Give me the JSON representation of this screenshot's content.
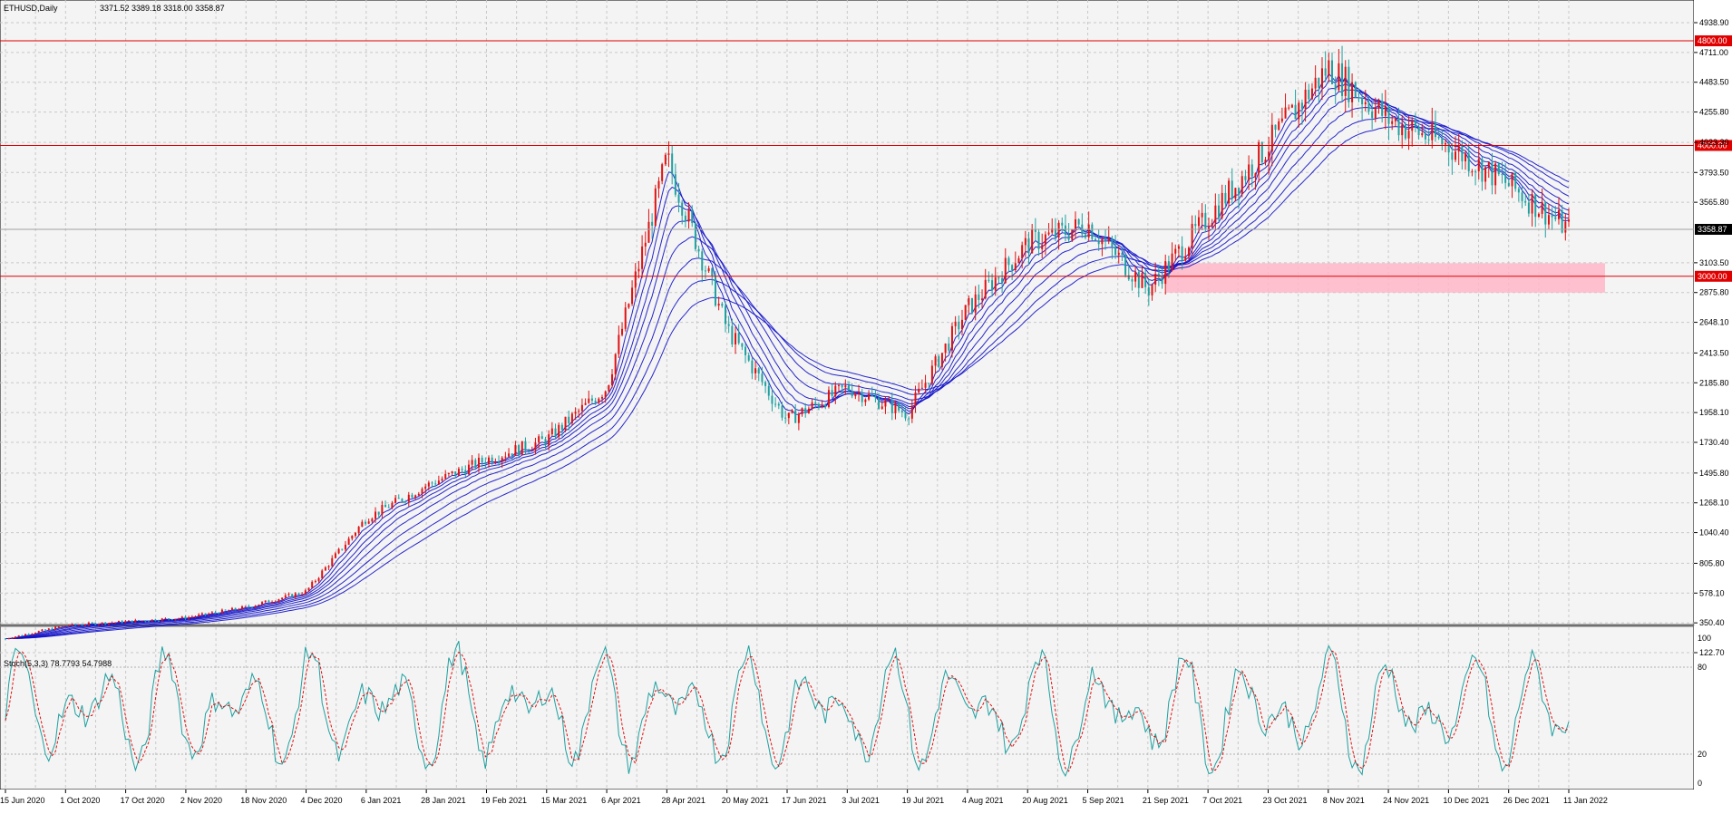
{
  "header": {
    "symbol_tf": "ETHUSD,Daily",
    "ohlc": "3371.52 3389.18 3318.00 3358.87"
  },
  "colors": {
    "background": "#f4f4f4",
    "grid": "#c8c8c8",
    "bull_candle": "#e01010",
    "bear_candle": "#20a0a0",
    "ma_ribbon": "#1010c8",
    "level_line": "#e00000",
    "support_zone": "#ffb6c8",
    "stoch_main": "#20a0a0",
    "stoch_signal": "#e01010"
  },
  "chart_data": [
    {
      "type": "candlestick",
      "series": [
        {
          "name": "ETHUSD",
          "kind": "ohlc-close-trend",
          "x": [
            "15 Jun 2020",
            "1 Oct 2020",
            "17 Oct 2020",
            "2 Nov 2020",
            "18 Nov 2020",
            "4 Dec 2020",
            "6 Jan 2021",
            "28 Jan 2021",
            "19 Feb 2021",
            "15 Mar 2021",
            "6 Apr 2021",
            "28 Apr 2021",
            "20 May 2021",
            "17 Jun 2021",
            "3 Jul 2021",
            "19 Jul 2021",
            "4 Aug 2021",
            "20 Aug 2021",
            "5 Sep 2021",
            "21 Sep 2021",
            "7 Oct 2021",
            "23 Oct 2021",
            "8 Nov 2021",
            "24 Nov 2021",
            "10 Dec 2021",
            "26 Dec 2021",
            "11 Jan 2022"
          ],
          "values": [
            230,
            330,
            360,
            390,
            470,
            590,
            1150,
            1400,
            1600,
            1750,
            2150,
            3900,
            2600,
            1900,
            2150,
            1950,
            2750,
            3250,
            3400,
            2900,
            3450,
            4000,
            4600,
            4200,
            4000,
            3700,
            3358.87
          ]
        }
      ],
      "y_ticks": [
        "4938.90",
        "4711.00",
        "4483.50",
        "4255.80",
        "4023.30",
        "3793.50",
        "3565.80",
        "3103.50",
        "2875.80",
        "2648.10",
        "2413.50",
        "2185.80",
        "1958.10",
        "1730.40",
        "1495.80",
        "1268.10",
        "1040.40",
        "805.80",
        "578.10",
        "350.40",
        "122.70"
      ],
      "x_ticks": [
        "15 Jun 2020",
        "1 Oct 2020",
        "17 Oct 2020",
        "2 Nov 2020",
        "18 Nov 2020",
        "4 Dec 2020",
        "6 Jan 2021",
        "28 Jan 2021",
        "19 Feb 2021",
        "15 Mar 2021",
        "6 Apr 2021",
        "28 Apr 2021",
        "20 May 2021",
        "17 Jun 2021",
        "3 Jul 2021",
        "19 Jul 2021",
        "4 Aug 2021",
        "20 Aug 2021",
        "5 Sep 2021",
        "21 Sep 2021",
        "7 Oct 2021",
        "23 Oct 2021",
        "8 Nov 2021",
        "24 Nov 2021",
        "10 Dec 2021",
        "26 Dec 2021",
        "11 Jan 2022"
      ],
      "ylim": [
        122.7,
        5100
      ],
      "horizontal_levels": [
        "4800.00",
        "4000.00",
        "3000.00"
      ],
      "current_price_label": "3358.87",
      "support_zone": {
        "from_date": "21 Sep 2021",
        "to_date": "11 Jan 2022",
        "low": 2875,
        "high": 3100
      },
      "grid": true
    },
    {
      "type": "line",
      "title": "Stoch(5,3,3) 78.7793 54.7988",
      "y_ticks": [
        "100",
        "80",
        "20",
        "0"
      ],
      "ylim": [
        0,
        100
      ],
      "grid": true
    }
  ]
}
